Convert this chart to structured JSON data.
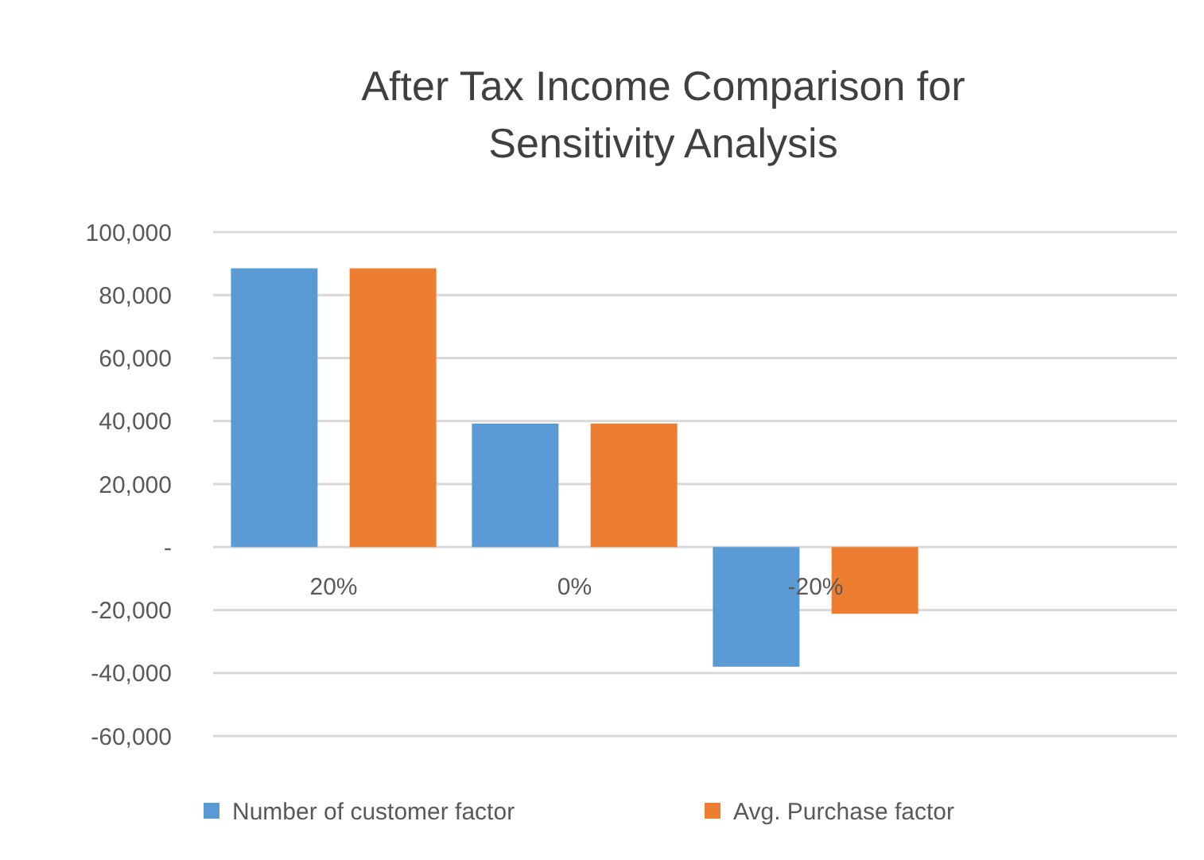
{
  "chart_data": {
    "type": "bar",
    "title": "After Tax Income Comparison for Sensitivity Analysis",
    "categories": [
      "20%",
      "0%",
      "-20%",
      null
    ],
    "series": [
      {
        "name": "Number of customer factor",
        "color": "#5b9bd5",
        "values": [
          88500,
          39200,
          -38000,
          null
        ]
      },
      {
        "name": "Avg. Purchase factor",
        "color": "#ed7d31",
        "values": [
          88500,
          39200,
          -21200,
          null
        ]
      }
    ],
    "ylim": [
      -60000,
      100000
    ],
    "yticks": [
      {
        "value": -60000,
        "label": "-60,000"
      },
      {
        "value": -40000,
        "label": "-40,000"
      },
      {
        "value": -20000,
        "label": "-20,000"
      },
      {
        "value": 0,
        "label": "-"
      },
      {
        "value": 20000,
        "label": "20,000"
      },
      {
        "value": 40000,
        "label": "40,000"
      },
      {
        "value": 60000,
        "label": "60,000"
      },
      {
        "value": 80000,
        "label": "80,000"
      },
      {
        "value": 100000,
        "label": "100,000"
      }
    ],
    "grid": "y",
    "legend": "bottom"
  }
}
